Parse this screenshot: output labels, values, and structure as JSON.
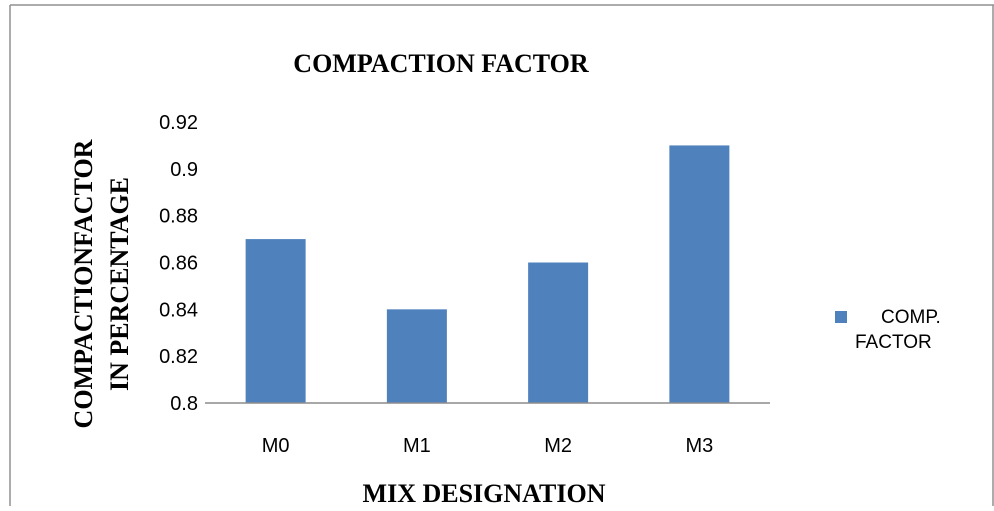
{
  "chart_data": {
    "type": "bar",
    "title": "COMPACTION FACTOR",
    "xlabel": "MIX DESIGNATION",
    "ylabel_lines": [
      "COMPACTIONFACTOR",
      "IN PERCENTAGE"
    ],
    "categories": [
      "M0",
      "M1",
      "M2",
      "M3"
    ],
    "series": [
      {
        "name": "COMP. FACTOR",
        "values": [
          0.87,
          0.84,
          0.86,
          0.91
        ],
        "color": "#4F81BD"
      }
    ],
    "ylim": [
      0.8,
      0.92
    ],
    "yticks": [
      "0.8",
      "0.82",
      "0.84",
      "0.86",
      "0.88",
      "0.9",
      "0.92"
    ],
    "grid": false,
    "legend_position": "right",
    "legend_lines": [
      "COMP.",
      "FACTOR"
    ]
  }
}
